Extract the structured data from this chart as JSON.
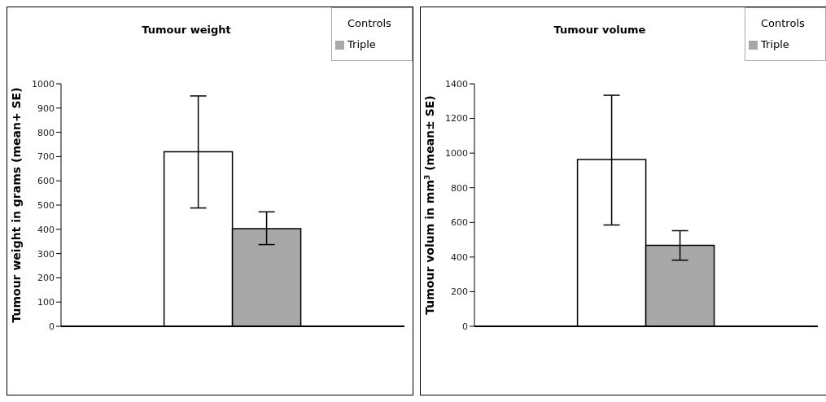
{
  "chart_data": [
    {
      "type": "bar",
      "title": "Tumour weight",
      "ylabel": "Tumour weight in grams (mean+ SE)",
      "categories": [
        null
      ],
      "series": [
        {
          "name": "Controls",
          "color": "#ffffff",
          "values": [
            720
          ],
          "errors": [
            [
              488,
              950
            ]
          ]
        },
        {
          "name": "Triple",
          "color": "#a8a8a8",
          "values": [
            403
          ],
          "errors": [
            [
              337,
              472
            ]
          ]
        }
      ],
      "ylim": [
        0,
        1000
      ],
      "yticks": [
        0,
        100,
        200,
        300,
        400,
        500,
        600,
        700,
        800,
        900,
        1000
      ],
      "grid": false,
      "legend": "top right"
    },
    {
      "type": "bar",
      "title": "Tumour volume",
      "ylabel": "Tumour volum in mm$^{3}$ (mean± SE)",
      "categories": [
        null
      ],
      "series": [
        {
          "name": "Controls",
          "color": "#ffffff",
          "values": [
            963
          ],
          "errors": [
            [
              585,
              1334
            ]
          ]
        },
        {
          "name": "Triple",
          "color": "#a8a8a8",
          "values": [
            467
          ],
          "errors": [
            [
              382,
              552
            ]
          ]
        }
      ],
      "ylim": [
        0,
        1400
      ],
      "yticks": [
        0,
        200,
        400,
        600,
        800,
        1000,
        1200,
        1400
      ],
      "grid": false,
      "legend": "top right"
    }
  ]
}
